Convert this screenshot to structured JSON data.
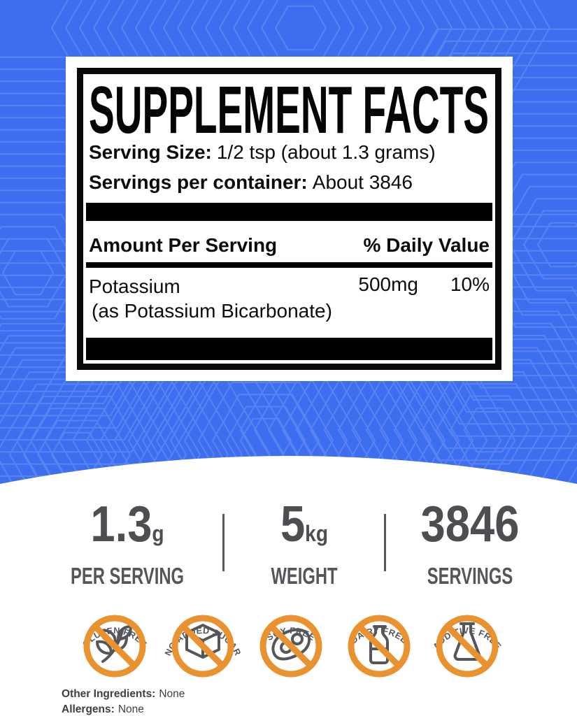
{
  "supplement_facts": {
    "title": "SUPPLEMENT FACTS",
    "serving_size": {
      "label": "Serving Size:",
      "value": "1/2 tsp (about 1.3 grams)"
    },
    "servings_per_container": {
      "label": "Servings per container:",
      "value": "About 3846"
    },
    "columns": {
      "amount": "Amount Per Serving",
      "daily_value": "% Daily Value"
    },
    "nutrients": [
      {
        "name": "Potassium",
        "source": "(as Potassium Bicarbonate)",
        "amount": "500mg",
        "daily_value": "10%"
      }
    ]
  },
  "stats": [
    {
      "value": "1.3",
      "unit": "g",
      "label": "PER SERVING"
    },
    {
      "value": "5",
      "unit": "kg",
      "label": "WEIGHT"
    },
    {
      "value": "3846",
      "unit": "",
      "label": "SERVINGS"
    }
  ],
  "badges": [
    {
      "text": "GLUTEN FREE",
      "icon": "wheat-icon"
    },
    {
      "text": "NO ADDED SUGAR",
      "icon": "sugar-cube-icon"
    },
    {
      "text": "SOY FREE",
      "icon": "soy-pod-icon"
    },
    {
      "text": "DAIRY FREE",
      "icon": "milk-bottle-icon"
    },
    {
      "text": "ADDITIVE FREE",
      "icon": "flask-icon"
    }
  ],
  "other_info": [
    {
      "label": "Other Ingredients:",
      "value": "None"
    },
    {
      "label": "Allergens:",
      "value": "None"
    }
  ],
  "colors": {
    "background_blue": "#3D6EF0",
    "accent_orange": "#E9922F",
    "stat_gray": "#4D4E52",
    "panel_black": "#0A0A0A"
  }
}
